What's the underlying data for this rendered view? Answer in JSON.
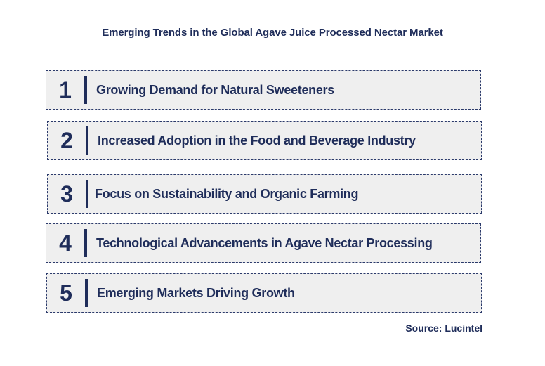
{
  "title": "Emerging Trends in the Global Agave Juice Processed Nectar Market",
  "trends": [
    {
      "number": "1",
      "label": "Growing Demand for Natural Sweeteners"
    },
    {
      "number": "2",
      "label": "Increased Adoption in the Food and Beverage Industry"
    },
    {
      "number": "3",
      "label": "Focus on Sustainability and Organic Farming"
    },
    {
      "number": "4",
      "label": "Technological Advancements in Agave Nectar Processing"
    },
    {
      "number": "5",
      "label": "Emerging Markets Driving Growth"
    }
  ],
  "source": "Source: Lucintel",
  "colors": {
    "text": "#1f2d5a",
    "box_background": "#efefef",
    "border": "#2b3a6b"
  }
}
